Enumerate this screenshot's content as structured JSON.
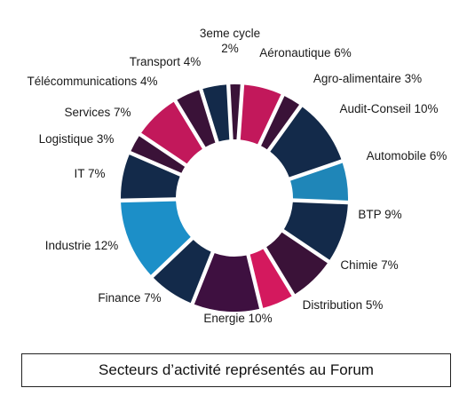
{
  "chart_data": {
    "type": "pie",
    "style": "donut",
    "unit": "%",
    "slices": [
      {
        "name": "Aéronautique",
        "value": 6,
        "label": "Aéronautique 6%",
        "color": "#c2185b"
      },
      {
        "name": "Agro-alimentaire",
        "value": 3,
        "label": "Agro-alimentaire 3%",
        "color": "#3a1238"
      },
      {
        "name": "Audit-Conseil",
        "value": 10,
        "label": "Audit-Conseil 10%",
        "color": "#132a4a"
      },
      {
        "name": "Automobile",
        "value": 6,
        "label": "Automobile 6%",
        "color": "#1f86b8"
      },
      {
        "name": "BTP",
        "value": 9,
        "label": "BTP 9%",
        "color": "#132a4a"
      },
      {
        "name": "Chimie",
        "value": 7,
        "label": "Chimie 7%",
        "color": "#3a1238"
      },
      {
        "name": "Distribution",
        "value": 5,
        "label": "Distribution 5%",
        "color": "#d4195e"
      },
      {
        "name": "Energie",
        "value": 10,
        "label": "Energie 10%",
        "color": "#3e1040"
      },
      {
        "name": "Finance",
        "value": 7,
        "label": "Finance 7%",
        "color": "#132a4a"
      },
      {
        "name": "Industrie",
        "value": 12,
        "label": "Industrie 12%",
        "color": "#1c8fc8"
      },
      {
        "name": "IT",
        "value": 7,
        "label": "IT 7%",
        "color": "#132a4a"
      },
      {
        "name": "Logistique",
        "value": 3,
        "label": "Logistique 3%",
        "color": "#3a1238"
      },
      {
        "name": "Services",
        "value": 7,
        "label": "Services 7%",
        "color": "#c2185b"
      },
      {
        "name": "Télécommunications",
        "value": 4,
        "label": "Télécommunications 4%",
        "color": "#3a1238"
      },
      {
        "name": "Transport",
        "value": 4,
        "label": "Transport 4%",
        "color": "#132a4a"
      },
      {
        "name": "3eme cycle",
        "value": 2,
        "label": "3eme cycle\n2%",
        "color": "#3a1238"
      }
    ]
  },
  "caption": "Secteurs d’activité représentés au Forum"
}
